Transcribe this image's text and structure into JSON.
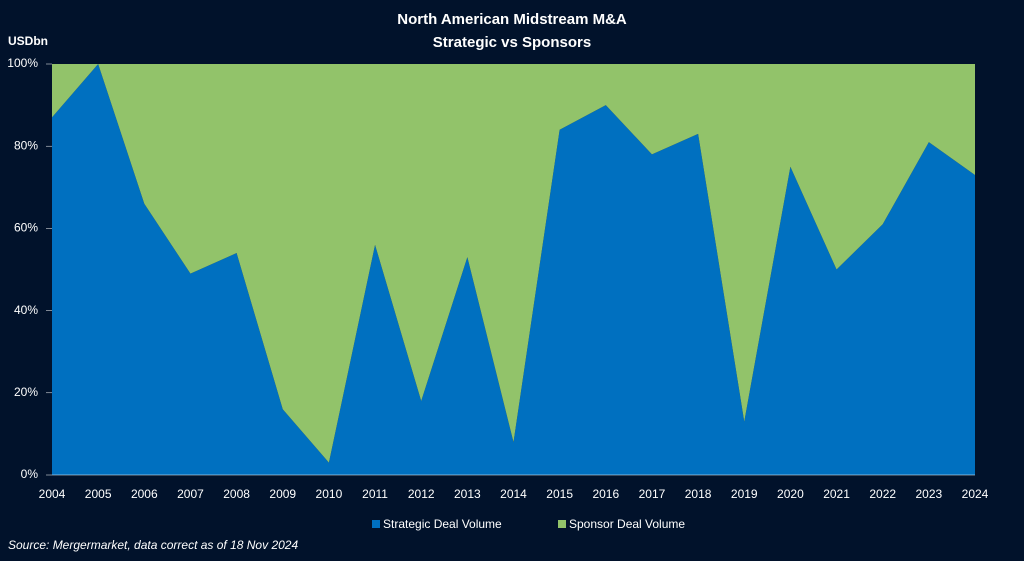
{
  "chart_data": {
    "type": "stacked_area_100",
    "title": "North American Midstream  M&A",
    "subtitle": "Strategic vs Sponsors",
    "y_label": "USDbn",
    "source": "Source: Mergermarket, data correct as of 18 Nov 2024",
    "categories": [
      "2004",
      "2005",
      "2006",
      "2007",
      "2008",
      "2009",
      "2010",
      "2011",
      "2012",
      "2013",
      "2014",
      "2015",
      "2016",
      "2017",
      "2018",
      "2019",
      "2020",
      "2021",
      "2022",
      "2023",
      "2024"
    ],
    "series": [
      {
        "name": "Strategic Deal Volume",
        "color": "#0070c0",
        "values": [
          87,
          100,
          66,
          49,
          54,
          16,
          3,
          56,
          18,
          53,
          8,
          84,
          90,
          78,
          83,
          13,
          75,
          50,
          61,
          81,
          73
        ]
      },
      {
        "name": "Sponsor Deal Volume",
        "color": "#92c36a",
        "values": [
          13,
          0,
          34,
          51,
          46,
          84,
          97,
          44,
          82,
          47,
          92,
          16,
          10,
          22,
          17,
          87,
          25,
          50,
          39,
          19,
          27
        ]
      }
    ],
    "ylim": [
      0,
      100
    ],
    "yticks": [
      {
        "value": 0,
        "label": "0%"
      },
      {
        "value": 20,
        "label": "20%"
      },
      {
        "value": 40,
        "label": "40%"
      },
      {
        "value": 60,
        "label": "60%"
      },
      {
        "value": 80,
        "label": "80%"
      },
      {
        "value": 100,
        "label": "100%"
      }
    ],
    "legend": "bottom",
    "grid": false
  }
}
